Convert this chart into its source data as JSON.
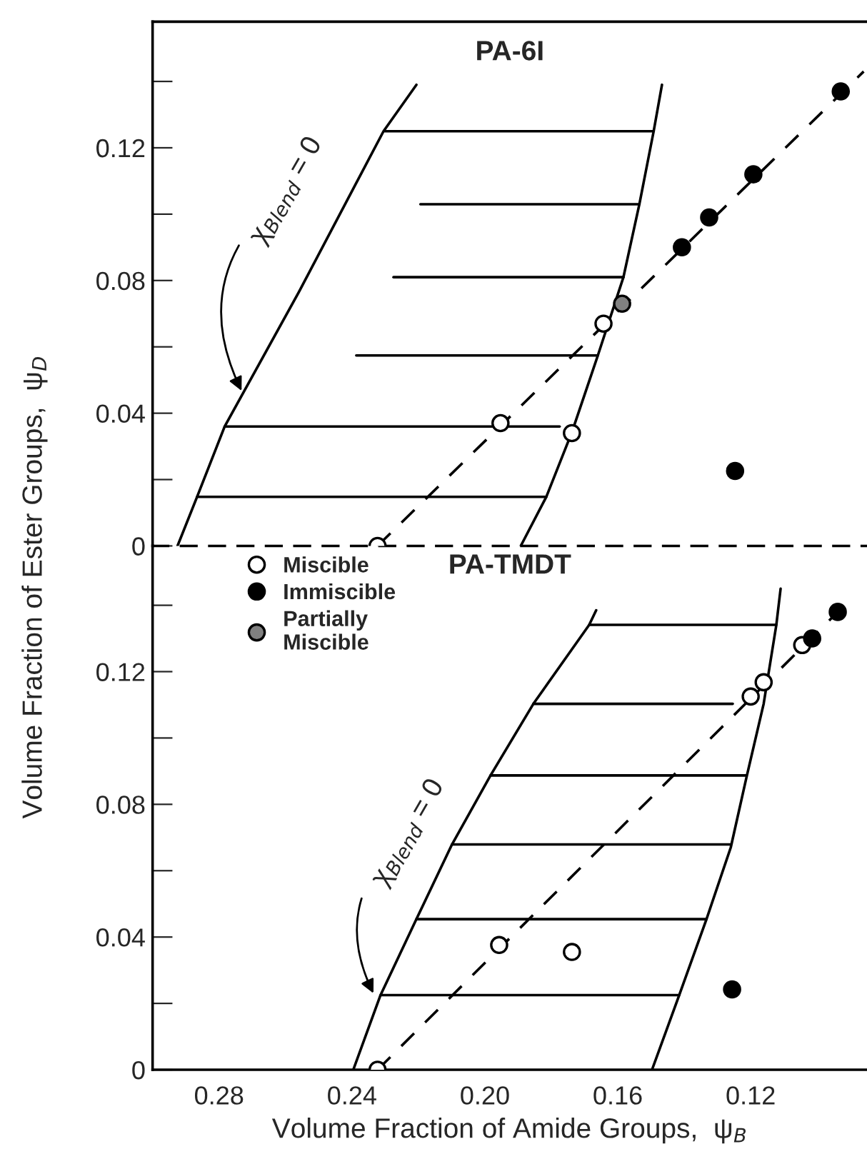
{
  "chart_data": [
    {
      "type": "scatter",
      "title": "PA-6I",
      "ylabel": "Volume Fraction of Ester Groups,  ψ$_{D}$",
      "xlim": [
        0.3,
        0.085
      ],
      "ylim": [
        0,
        0.158
      ],
      "yticks": [
        0,
        {
          "value": 0.02,
          "label": null
        },
        0.04,
        {
          "value": 0.06,
          "label": null
        },
        0.08,
        {
          "value": 0.1,
          "label": null
        },
        0.12,
        {
          "value": 0.14,
          "label": null
        }
      ],
      "tick_labels": "y",
      "legend": false,
      "annotations": [
        {
          "text": "χ$_{Blend}$ = 0",
          "x": 0.2727,
          "y": 0.0457
        }
      ],
      "series": [
        {
          "marker": "circle",
          "color": "#ffffff",
          "x": [
            0.2323,
            0.1953,
            0.1738,
            0.1643
          ],
          "values": [
            0,
            0.037,
            0.034,
            0.067
          ]
        },
        {
          "marker": "circle",
          "color": "#000000",
          "x": [
            0.1407,
            0.1325,
            0.1192,
            0.0929,
            0.1247
          ],
          "values": [
            0.09,
            0.099,
            0.112,
            0.137,
            0.0226
          ]
        },
        {
          "marker": "circle",
          "color": "#808080",
          "x": [
            0.1587
          ],
          "values": [
            0.073
          ]
        },
        {
          "type": "line",
          "line_style": "dashed",
          "color": "#000000",
          "x": [
            0.2323,
            0.086
          ],
          "values": [
            0,
            0.143
          ]
        },
        {
          "type": "line",
          "color": "#000000",
          "x": [
            0.2925,
            0.2866,
            0.2783,
            0.256,
            0.2305,
            0.2206
          ],
          "values": [
            0,
            0.0148,
            0.036,
            0.0765,
            0.125,
            0.139
          ]
        },
        {
          "type": "line",
          "color": "#000000",
          "x": [
            0.1892,
            0.1815,
            0.1738,
            0.166,
            0.1583,
            0.1535,
            0.1492,
            0.1467
          ],
          "values": [
            0,
            0.0148,
            0.0343,
            0.0574,
            0.081,
            0.103,
            0.125,
            0.139
          ]
        },
        {
          "type": "line",
          "color": "#000000",
          "x": [
            0.2866,
            0.1815
          ],
          "values": [
            0.0148,
            0.0148
          ]
        },
        {
          "type": "line",
          "color": "#000000",
          "x": [
            0.2783,
            0.1775
          ],
          "values": [
            0.036,
            0.036
          ]
        },
        {
          "type": "line",
          "color": "#000000",
          "x": [
            0.2387,
            0.166
          ],
          "values": [
            0.0574,
            0.0574
          ]
        },
        {
          "type": "line",
          "color": "#000000",
          "x": [
            0.2275,
            0.1583
          ],
          "values": [
            0.081,
            0.081
          ]
        },
        {
          "type": "line",
          "color": "#000000",
          "x": [
            0.2194,
            0.1535
          ],
          "values": [
            0.103,
            0.103
          ]
        },
        {
          "type": "line",
          "color": "#000000",
          "x": [
            0.2301,
            0.1492
          ],
          "values": [
            0.125,
            0.125
          ]
        }
      ]
    },
    {
      "type": "scatter",
      "title": "PA-TMDT",
      "xlabel": "Volume Fraction of Amide Groups,  ψ$_{B}$",
      "xlim": [
        0.3,
        0.085
      ],
      "ylim": [
        0,
        0.158
      ],
      "xticks": [
        0.28,
        0.24,
        {
          "value": 0.2,
          "label": "0.20"
        },
        0.16,
        0.12
      ],
      "yticks": [
        0,
        {
          "value": 0.02,
          "label": null
        },
        0.04,
        {
          "value": 0.06,
          "label": null
        },
        0.08,
        {
          "value": 0.1,
          "label": null
        },
        0.12,
        {
          "value": 0.14,
          "label": null
        }
      ],
      "legend": "top left",
      "annotations": [
        {
          "text": "χ$_{Blend}$ = 0",
          "x": 0.233,
          "y": 0.022
        }
      ],
      "series": [
        {
          "name": "Miscible",
          "marker": "circle",
          "color": "#ffffff",
          "x": [
            0.2323,
            0.1957,
            0.1738,
            0.12,
            0.1161,
            0.1045
          ],
          "values": [
            0,
            0.0376,
            0.0355,
            0.1125,
            0.1168,
            0.128
          ]
        },
        {
          "name": "Immiscible",
          "marker": "circle",
          "color": "#000000",
          "x": [
            0.1256,
            0.1015,
            0.0938
          ],
          "values": [
            0.0242,
            0.13,
            0.138
          ]
        },
        {
          "name": "Partially\nMiscible",
          "marker": "circle",
          "color": "#808080"
        },
        {
          "type": "line",
          "line_style": "dashed",
          "color": "#000000",
          "x": [
            0.2323,
            0.0938
          ],
          "values": [
            0,
            0.138
          ]
        },
        {
          "type": "line",
          "color": "#000000",
          "x": [
            0.2396,
            0.2314,
            0.2206,
            0.2099,
            0.1983,
            0.1854,
            0.1686,
            0.1665
          ],
          "values": [
            0,
            0.0225,
            0.0454,
            0.0679,
            0.0887,
            0.1103,
            0.1341,
            0.1385
          ]
        },
        {
          "type": "line",
          "color": "#000000",
          "x": [
            0.1497,
            0.1415,
            0.1333,
            0.126,
            0.1213,
            0.1161,
            0.1123,
            0.111
          ],
          "values": [
            0,
            0.0225,
            0.0454,
            0.067,
            0.088,
            0.1103,
            0.134,
            0.145
          ]
        },
        {
          "type": "line",
          "color": "#000000",
          "x": [
            0.2314,
            0.1415
          ],
          "values": [
            0.0225,
            0.0225
          ]
        },
        {
          "type": "line",
          "color": "#000000",
          "x": [
            0.2206,
            0.1333
          ],
          "values": [
            0.0454,
            0.0454
          ]
        },
        {
          "type": "line",
          "color": "#000000",
          "x": [
            0.2099,
            0.126
          ],
          "values": [
            0.0679,
            0.0679
          ]
        },
        {
          "type": "line",
          "color": "#000000",
          "x": [
            0.1983,
            0.1213
          ],
          "values": [
            0.0887,
            0.0887
          ]
        },
        {
          "type": "line",
          "color": "#000000",
          "x": [
            0.1854,
            0.1254
          ],
          "values": [
            0.1103,
            0.1103
          ]
        },
        {
          "type": "line",
          "color": "#000000",
          "x": [
            0.1686,
            0.1123
          ],
          "values": [
            0.1341,
            0.1341
          ]
        }
      ]
    }
  ]
}
